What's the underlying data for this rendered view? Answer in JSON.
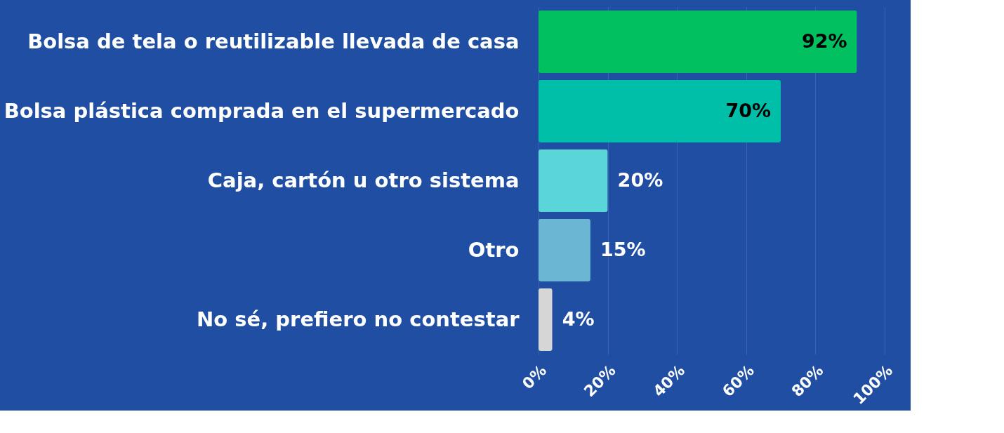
{
  "chart_data": {
    "type": "bar",
    "orientation": "horizontal",
    "categories": [
      "Bolsa de tela o reutilizable llevada de casa",
      "Bolsa plástica comprada en el supermercado",
      "Caja, cartón u otro sistema",
      "Otro",
      "No sé, prefiero no contestar"
    ],
    "values": [
      92,
      70,
      20,
      15,
      4
    ],
    "colors": [
      "#00c060",
      "#00bfa8",
      "#5ad5d8",
      "#6bb7d3",
      "#d6d6d6"
    ],
    "value_labels": [
      "92%",
      "70%",
      "20%",
      "15%",
      "4%"
    ],
    "xlim": [
      0,
      100
    ],
    "xticks": [
      {
        "value": 0,
        "label": "0%"
      },
      {
        "value": 20,
        "label": "20%"
      },
      {
        "value": 40,
        "label": "40%"
      },
      {
        "value": 60,
        "label": "60%"
      },
      {
        "value": 80,
        "label": "80%"
      },
      {
        "value": 100,
        "label": "100%"
      }
    ],
    "grid": "x"
  }
}
